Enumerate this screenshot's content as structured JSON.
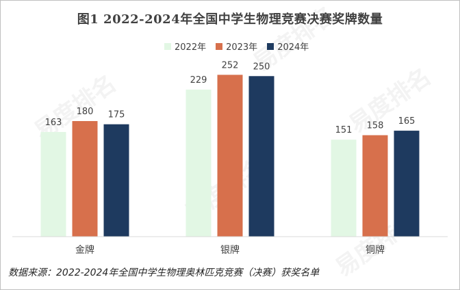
{
  "title": "图1  2022-2024年全国中学生物理竞赛决赛奖牌数量",
  "source": "数据来源：2022-2024年全国中学生物理奥林匹克竞赛（决赛）获奖名单",
  "watermark": "易度排名",
  "colors": {
    "s2022": "#e2f7e4",
    "s2023": "#d7704c",
    "s2024": "#1e3a5f",
    "axis": "#d9d9d9",
    "text": "#404040"
  },
  "chart_data": {
    "type": "bar",
    "categories": [
      "金牌",
      "银牌",
      "铜牌"
    ],
    "series": [
      {
        "name": "2022年",
        "values": [
          163,
          229,
          151
        ]
      },
      {
        "name": "2023年",
        "values": [
          180,
          252,
          158
        ]
      },
      {
        "name": "2024年",
        "values": [
          175,
          250,
          165
        ]
      }
    ],
    "title": "图1  2022-2024年全国中学生物理竞赛决赛奖牌数量",
    "xlabel": "",
    "ylabel": "",
    "ylim": [
      0,
      262
    ],
    "grid": false,
    "legend": "top-center"
  }
}
